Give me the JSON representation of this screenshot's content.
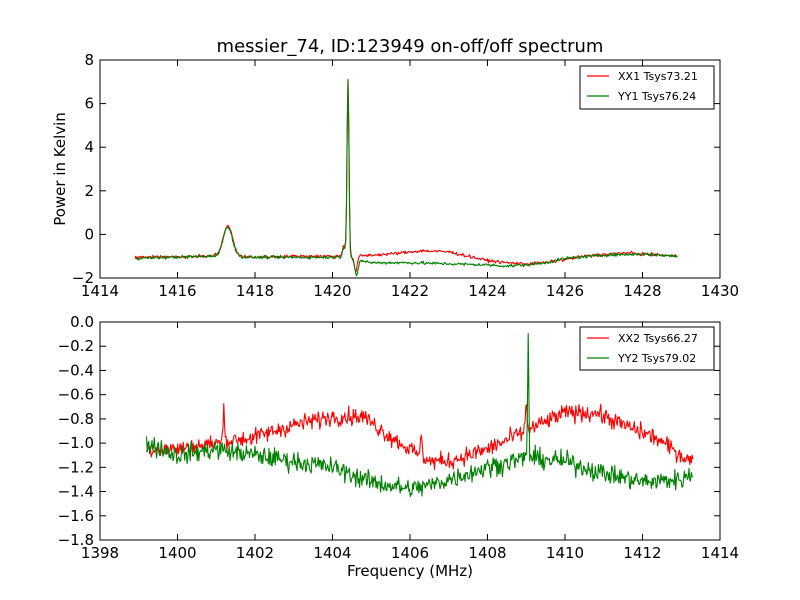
{
  "chart_data": [
    {
      "type": "line",
      "title": "messier_74, ID:123949 on-off/off spectrum",
      "xlabel": "",
      "ylabel": "Power in Kelvin",
      "xlim": [
        1414,
        1430
      ],
      "ylim": [
        -2,
        8
      ],
      "xticks": [
        "1414",
        "1416",
        "1418",
        "1420",
        "1422",
        "1424",
        "1426",
        "1428",
        "1430"
      ],
      "yticks": [
        "−2",
        "0",
        "2",
        "4",
        "6",
        "8"
      ],
      "legend_position": "top-right",
      "series": [
        {
          "name": "XX1 Tsys73.21",
          "color": "#ff0000",
          "x_range": [
            1414.9,
            1428.9
          ],
          "baseline": [
            [
              1414.9,
              -1.05
            ],
            [
              1416.8,
              -1.0
            ],
            [
              1417.25,
              -0.95
            ],
            [
              1417.9,
              -1.05
            ],
            [
              1419.0,
              -1.0
            ],
            [
              1420.2,
              -1.0
            ],
            [
              1420.5,
              -1.0
            ],
            [
              1421.0,
              -0.95
            ],
            [
              1421.5,
              -0.9
            ],
            [
              1422.3,
              -0.75
            ],
            [
              1423.0,
              -0.8
            ],
            [
              1423.5,
              -1.0
            ],
            [
              1424.0,
              -1.2
            ],
            [
              1424.5,
              -1.3
            ],
            [
              1425.0,
              -1.35
            ],
            [
              1425.5,
              -1.3
            ],
            [
              1426.0,
              -1.15
            ],
            [
              1426.5,
              -1.0
            ],
            [
              1427.5,
              -0.85
            ],
            [
              1428.9,
              -1.0
            ]
          ],
          "features": [
            [
              1417.3,
              1.35,
              0.12
            ],
            [
              1420.4,
              8.1,
              0.025
            ],
            [
              1420.3,
              0.5,
              0.04
            ],
            [
              1420.6,
              -0.7,
              0.04
            ]
          ],
          "noise": 0.07
        },
        {
          "name": "YY1 Tsys76.24",
          "color": "#008000",
          "x_range": [
            1414.9,
            1428.9
          ],
          "baseline": [
            [
              1414.9,
              -1.1
            ],
            [
              1416.8,
              -1.0
            ],
            [
              1417.9,
              -1.05
            ],
            [
              1419.0,
              -1.05
            ],
            [
              1420.2,
              -1.05
            ],
            [
              1420.5,
              -1.1
            ],
            [
              1421.0,
              -1.3
            ],
            [
              1422.0,
              -1.3
            ],
            [
              1423.0,
              -1.35
            ],
            [
              1424.0,
              -1.4
            ],
            [
              1424.5,
              -1.45
            ],
            [
              1425.0,
              -1.4
            ],
            [
              1425.5,
              -1.3
            ],
            [
              1426.0,
              -1.1
            ],
            [
              1427.0,
              -0.95
            ],
            [
              1428.0,
              -0.9
            ],
            [
              1428.9,
              -1.0
            ]
          ],
          "features": [
            [
              1417.3,
              1.35,
              0.12
            ],
            [
              1420.4,
              8.15,
              0.025
            ],
            [
              1420.3,
              0.5,
              0.04
            ],
            [
              1420.62,
              -0.8,
              0.04
            ]
          ],
          "noise": 0.07
        }
      ]
    },
    {
      "type": "line",
      "title": "",
      "xlabel": "Frequency (MHz)",
      "ylabel": "",
      "xlim": [
        1398,
        1414
      ],
      "ylim": [
        -1.8,
        0.0
      ],
      "xticks": [
        "1398",
        "1400",
        "1402",
        "1404",
        "1406",
        "1408",
        "1410",
        "1412",
        "1414"
      ],
      "yticks": [
        "−1.8",
        "−1.6",
        "−1.4",
        "−1.2",
        "−1.0",
        "−0.8",
        "−0.6",
        "−0.4",
        "−0.2",
        "0.0"
      ],
      "legend_position": "top-right",
      "series": [
        {
          "name": "XX2 Tsys66.27",
          "color": "#ff0000",
          "x_range": [
            1399.2,
            1413.3
          ],
          "baseline": [
            [
              1399.2,
              -1.05
            ],
            [
              1400.0,
              -1.05
            ],
            [
              1401.0,
              -1.0
            ],
            [
              1402.0,
              -0.95
            ],
            [
              1403.0,
              -0.85
            ],
            [
              1404.0,
              -0.78
            ],
            [
              1404.8,
              -0.78
            ],
            [
              1405.5,
              -0.95
            ],
            [
              1406.0,
              -1.05
            ],
            [
              1406.5,
              -1.15
            ],
            [
              1407.0,
              -1.15
            ],
            [
              1408.0,
              -1.05
            ],
            [
              1409.0,
              -0.9
            ],
            [
              1410.0,
              -0.75
            ],
            [
              1410.8,
              -0.75
            ],
            [
              1411.5,
              -0.85
            ],
            [
              1412.3,
              -0.95
            ],
            [
              1413.0,
              -1.1
            ],
            [
              1413.3,
              -1.15
            ]
          ],
          "features": [
            [
              1401.2,
              0.3,
              0.02
            ],
            [
              1409.0,
              0.25,
              0.02
            ],
            [
              1406.3,
              0.2,
              0.02
            ]
          ],
          "noise": 0.07
        },
        {
          "name": "YY2 Tsys79.02",
          "color": "#008000",
          "x_range": [
            1399.2,
            1413.3
          ],
          "baseline": [
            [
              1399.2,
              -1.0
            ],
            [
              1400.0,
              -1.1
            ],
            [
              1401.0,
              -1.05
            ],
            [
              1402.0,
              -1.1
            ],
            [
              1403.0,
              -1.15
            ],
            [
              1404.0,
              -1.2
            ],
            [
              1405.0,
              -1.32
            ],
            [
              1406.0,
              -1.38
            ],
            [
              1406.5,
              -1.35
            ],
            [
              1407.0,
              -1.3
            ],
            [
              1408.0,
              -1.2
            ],
            [
              1409.0,
              -1.12
            ],
            [
              1410.0,
              -1.15
            ],
            [
              1411.0,
              -1.25
            ],
            [
              1412.0,
              -1.32
            ],
            [
              1413.0,
              -1.3
            ],
            [
              1413.3,
              -1.25
            ]
          ],
          "features": [
            [
              1409.05,
              1.05,
              0.015
            ]
          ],
          "noise": 0.08
        }
      ]
    }
  ]
}
